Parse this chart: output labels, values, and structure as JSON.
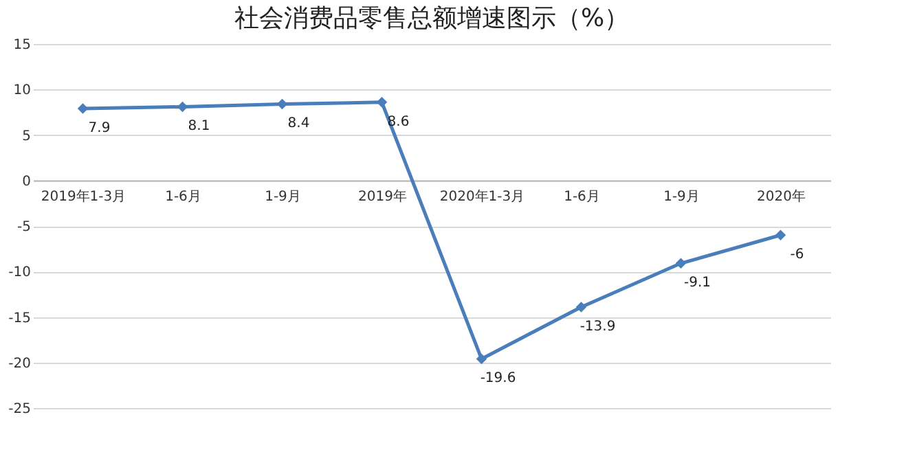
{
  "chart_data": {
    "type": "line",
    "title": "社会消费品零售总额增速图示（%）",
    "categories": [
      "2019年1-3月",
      "1-6月",
      "1-9月",
      "2019年",
      "2020年1-3月",
      "1-6月",
      "1-9月",
      "2020年"
    ],
    "series": [
      {
        "color": "#4a7ebb",
        "values": [
          7.9,
          8.1,
          8.4,
          8.6,
          -19.6,
          -13.9,
          -9.1,
          -6
        ]
      }
    ],
    "ylim": [
      -25,
      15
    ],
    "yticks": [
      -25,
      -20,
      -15,
      -10,
      -5,
      0,
      5,
      10,
      15
    ],
    "grid": "y",
    "marker": "diamond",
    "line_style": "solid",
    "data_labels": true
  }
}
